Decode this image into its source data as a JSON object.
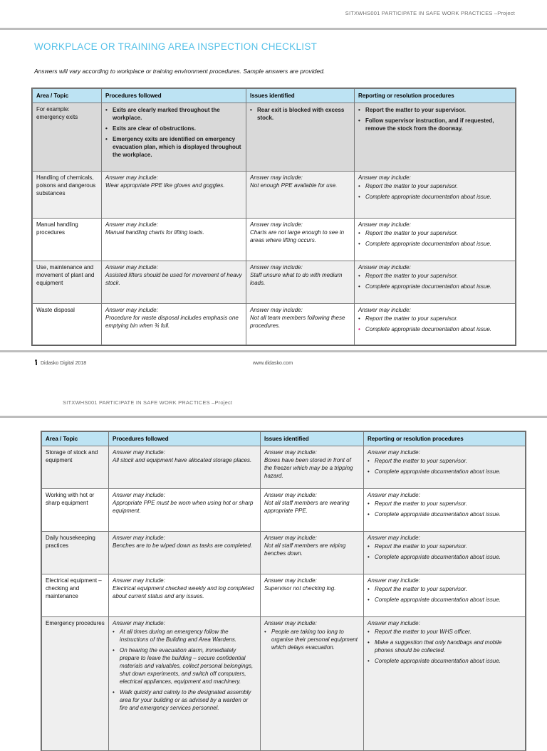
{
  "colors": {
    "accent_blue": "#56c1e8",
    "table_header_bg": "#bde3f3",
    "example_row_bg": "#d9d9d9",
    "alt_row_bg": "#efefef",
    "white_row_bg": "#ffffff",
    "pink_bullet": "#e6007e",
    "rule_gray": "#bdbdbd",
    "header_text_gray": "#6e6e6e"
  },
  "page1": {
    "header": "SITXWHS001 PARTICIPATE IN SAFE WORK PRACTICES –Project",
    "title": "WORKPLACE OR TRAINING AREA INSPECTION CHECKLIST",
    "intro": "Answers will vary according to workplace or training environment procedures. Sample answers are provided.",
    "footer": {
      "copyright": "Didasko Digital 2018",
      "website": "www.didasko.com"
    },
    "table": {
      "columns": [
        "Area / Topic",
        "Procedures followed",
        "Issues identified",
        "Reporting or resolution procedures"
      ],
      "rows": [
        {
          "topic": "For example: emergency exits",
          "shade": "#d9d9d9",
          "bold": true,
          "min_h": 88,
          "procedures": {
            "bullets": [
              "Exits are clearly marked throughout the workplace.",
              "Exits are clear of obstructions.",
              "Emergency exits are identified on emergency evacuation plan, which is displayed throughout the workplace."
            ]
          },
          "issues": {
            "bullets": [
              "Rear exit is blocked with excess stock."
            ]
          },
          "reporting": {
            "bullets": [
              "Report the matter to your supervisor.",
              "Follow supervisor instruction, and if requested, remove the stock from the doorway."
            ]
          }
        },
        {
          "topic": "Handling of chemicals, poisons and dangerous substances",
          "shade": "#efefef",
          "min_h": 58,
          "procedures": {
            "lead": "Answer may include:",
            "text": "Wear appropriate PPE like gloves and goggles."
          },
          "issues": {
            "lead": "Answer may include:",
            "text": "Not enough PPE available for use."
          },
          "reporting": {
            "lead": "Answer may include:",
            "bullets": [
              "Report the matter to your supervisor.",
              "Complete appropriate documentation about issue."
            ]
          }
        },
        {
          "topic": "Manual handling procedures",
          "shade": "#ffffff",
          "min_h": 52,
          "procedures": {
            "lead": "Answer may include:",
            "text": "Manual handling charts for lifting loads."
          },
          "issues": {
            "lead": "Answer may include:",
            "text": "Charts are not large enough to see in areas where lifting occurs."
          },
          "reporting": {
            "lead": "Answer may include:",
            "bullets": [
              "Report the matter to your supervisor.",
              "Complete appropriate documentation about issue."
            ]
          }
        },
        {
          "topic": "Use, maintenance and movement of plant and equipment",
          "shade": "#efefef",
          "min_h": 52,
          "procedures": {
            "lead": "Answer may include:",
            "text": "Assisted lifters should be used for movement of heavy stock."
          },
          "issues": {
            "lead": "Answer may include:",
            "text": "Staff unsure what to do with medium loads."
          },
          "reporting": {
            "lead": "Answer may include:",
            "bullets": [
              "Report the matter to your supervisor.",
              "Complete appropriate documentation about issue."
            ]
          }
        },
        {
          "topic": "Waste disposal",
          "shade": "#ffffff",
          "min_h": 50,
          "procedures": {
            "lead": "Answer may include:",
            "text": "Procedure for waste disposal includes emphasis one emptying bin when ¾ full."
          },
          "issues": {
            "lead": "Answer may include:",
            "text": "Not all team members following these procedures."
          },
          "reporting": {
            "lead": "Answer may include:",
            "bullets": [
              "Report the matter to your supervisor.",
              {
                "text": "Complete appropriate documentation about issue.",
                "marker": "pink"
              }
            ]
          }
        }
      ]
    }
  },
  "page2": {
    "header": "SITXWHS001 PARTICIPATE IN SAFE WORK PRACTICES –Project",
    "table": {
      "columns": [
        "Area / Topic",
        "Procedures followed",
        "Issues identified",
        "Reporting or resolution procedures"
      ],
      "rows": [
        {
          "topic": "Storage of stock and equipment",
          "shade": "#efefef",
          "min_h": 52,
          "procedures": {
            "lead": "Answer may include:",
            "text": "All stock and equipment have allocated storage places."
          },
          "issues": {
            "lead": "Answer may include:",
            "text": "Boxes have been stored in front of the freezer which may be a tripping hazard."
          },
          "reporting": {
            "lead": "Answer may include:",
            "bullets": [
              "Report the matter to your supervisor.",
              "Complete appropriate documentation about issue."
            ]
          }
        },
        {
          "topic": "Working with hot or sharp equipment",
          "shade": "#ffffff",
          "min_h": 52,
          "procedures": {
            "lead": "Answer may include:",
            "text": "Appropriate PPE must be worn when using hot or sharp equipment."
          },
          "issues": {
            "lead": "Answer may include:",
            "text": "Not all staff members are wearing appropriate PPE."
          },
          "reporting": {
            "lead": "Answer may include:",
            "bullets": [
              "Report the matter to your supervisor.",
              "Complete appropriate documentation about issue."
            ]
          }
        },
        {
          "topic": "Daily housekeeping practices",
          "shade": "#efefef",
          "min_h": 52,
          "procedures": {
            "lead": "Answer may include:",
            "text": "Benches are to be wiped down as tasks are completed."
          },
          "issues": {
            "lead": "Answer may include:",
            "text": "Not all staff members are wiping benches down."
          },
          "reporting": {
            "lead": "Answer may include:",
            "bullets": [
              "Report the matter to your supervisor.",
              "Complete appropriate documentation about issue."
            ]
          }
        },
        {
          "topic": "Electrical equipment – checking and maintenance",
          "shade": "#ffffff",
          "min_h": 52,
          "procedures": {
            "lead": "Answer may include:",
            "text": "Electrical equipment checked weekly and log completed about current status and any issues."
          },
          "issues": {
            "lead": "Answer may include:",
            "text": "Supervisor not checking log."
          },
          "reporting": {
            "lead": "Answer may include:",
            "bullets": [
              "Report the matter to your supervisor.",
              "Complete appropriate documentation about issue."
            ]
          }
        },
        {
          "topic": "Emergency procedures",
          "shade": "#efefef",
          "min_h": 180,
          "procedures": {
            "lead": "Answer may include:",
            "bullets": [
              "At all times during an emergency follow the instructions of the Building and Area Wardens.",
              "On hearing the evacuation alarm, immediately prepare to leave the building – secure confidential materials and valuables, collect personal belongings, shut down experiments, and switch off computers, electrical appliances, equipment and machinery.",
              "Walk quickly and calmly to the designated assembly area for your building or as advised by a warden or fire and emergency services personnel."
            ]
          },
          "issues": {
            "lead": "Answer may include:",
            "bullets": [
              "People are taking too long to organise their personal equipment which delays evacuation."
            ]
          },
          "reporting": {
            "lead": "Answer may include:",
            "bullets": [
              "Report the matter to your WHS officer.",
              "Make a suggestion that only handbags and mobile phones should be collected.",
              "Complete appropriate documentation about issue."
            ]
          }
        }
      ]
    }
  }
}
